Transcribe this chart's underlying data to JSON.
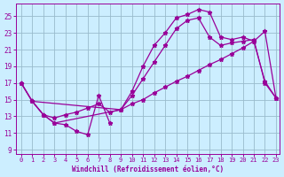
{
  "xlabel": "Windchill (Refroidissement éolien,°C)",
  "bg_color": "#cceeff",
  "grid_color": "#99bbcc",
  "line_color": "#990099",
  "xlim": [
    -0.5,
    23.3
  ],
  "ylim": [
    8.5,
    26.5
  ],
  "xticks": [
    0,
    1,
    2,
    3,
    4,
    5,
    6,
    7,
    8,
    9,
    10,
    11,
    12,
    13,
    14,
    15,
    16,
    17,
    18,
    19,
    20,
    21,
    22,
    23
  ],
  "yticks": [
    9,
    11,
    13,
    15,
    17,
    19,
    21,
    23,
    25
  ],
  "line1_x": [
    0,
    1,
    2,
    3,
    4,
    5,
    6,
    7,
    8
  ],
  "line1_y": [
    17.0,
    14.8,
    13.2,
    12.2,
    12.0,
    11.2,
    10.8,
    15.5,
    12.2
  ],
  "line2_x": [
    1,
    2,
    3,
    4,
    5,
    6,
    7,
    8,
    9,
    10,
    11,
    12,
    13,
    14,
    15,
    16,
    17,
    18,
    19,
    20,
    21,
    22,
    23
  ],
  "line2_y": [
    14.8,
    13.2,
    12.8,
    13.2,
    13.5,
    14.0,
    14.5,
    13.5,
    13.8,
    14.5,
    15.0,
    15.8,
    16.5,
    17.2,
    17.8,
    18.5,
    19.2,
    19.8,
    20.5,
    21.2,
    22.0,
    23.2,
    15.2
  ],
  "line3_x": [
    0,
    1,
    2,
    3,
    9,
    10,
    11,
    12,
    13,
    14,
    15,
    16,
    17,
    18,
    19,
    20,
    21,
    22,
    23
  ],
  "line3_y": [
    17.0,
    14.8,
    13.2,
    12.2,
    13.8,
    16.0,
    19.0,
    21.5,
    23.0,
    24.8,
    25.2,
    25.8,
    25.5,
    22.5,
    22.2,
    22.5,
    22.0,
    17.2,
    15.2
  ],
  "line4_x": [
    0,
    1,
    9,
    10,
    11,
    12,
    13,
    14,
    15,
    16,
    17,
    18,
    19,
    20,
    21,
    22,
    23
  ],
  "line4_y": [
    17.0,
    14.8,
    13.8,
    15.5,
    17.5,
    19.5,
    21.5,
    23.5,
    24.5,
    24.8,
    22.5,
    21.5,
    21.8,
    22.0,
    22.2,
    17.0,
    15.2
  ]
}
